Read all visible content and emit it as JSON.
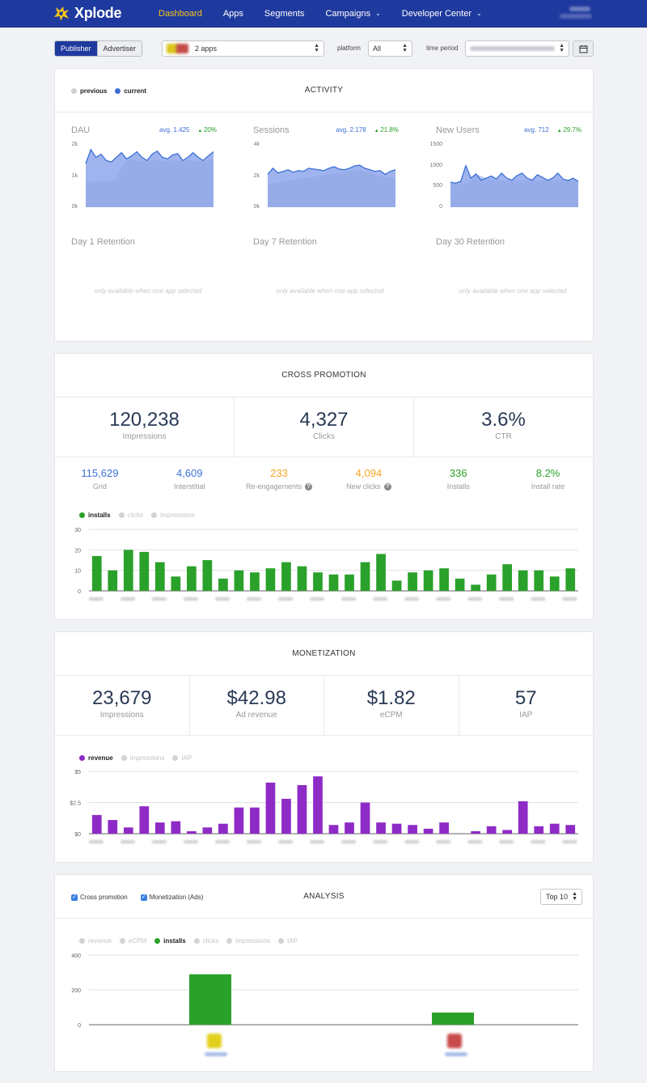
{
  "nav": {
    "brand": "Xplode",
    "items": [
      {
        "label": "Dashboard",
        "active": true,
        "dropdown": false
      },
      {
        "label": "Apps",
        "active": false,
        "dropdown": false
      },
      {
        "label": "Segments",
        "active": false,
        "dropdown": false
      },
      {
        "label": "Campaigns",
        "active": false,
        "dropdown": true
      },
      {
        "label": "Developer Center",
        "active": false,
        "dropdown": true
      }
    ]
  },
  "filters": {
    "role_publisher": "Publisher",
    "role_advertiser": "Advertiser",
    "apps_value": "2 apps",
    "platform_label": "platform",
    "platform_value": "All",
    "time_label": "time period"
  },
  "activity": {
    "title": "ACTIVITY",
    "legend": {
      "previous": "previous",
      "current": "current"
    },
    "metrics": [
      {
        "name": "DAU",
        "avg": "avg. 1.425",
        "change": "20%",
        "yticks": [
          "2k",
          "1k",
          "0k"
        ],
        "ymax": 2000,
        "current": [
          1400,
          1850,
          1600,
          1700,
          1500,
          1450,
          1600,
          1750,
          1550,
          1650,
          1780,
          1600,
          1500,
          1700,
          1800,
          1600,
          1550,
          1680,
          1720,
          1500,
          1600,
          1750,
          1600,
          1500,
          1650,
          1780
        ],
        "previous": [
          800,
          820,
          810,
          830,
          800,
          850,
          900,
          1300,
          1500,
          1550,
          1500,
          1450,
          1500,
          1480,
          1520,
          1500,
          1480,
          1510,
          1490,
          1500,
          1520,
          1480,
          1500,
          1490,
          1510,
          1500
        ]
      },
      {
        "name": "Sessions",
        "avg": "avg. 2.178",
        "change": "21.8%",
        "yticks": [
          "4k",
          "2k",
          "0k"
        ],
        "ymax": 4000,
        "current": [
          2100,
          2500,
          2200,
          2300,
          2400,
          2250,
          2350,
          2300,
          2500,
          2450,
          2400,
          2350,
          2500,
          2600,
          2450,
          2400,
          2500,
          2650,
          2700,
          2500,
          2400,
          2300,
          2350,
          2100,
          2300,
          2400
        ],
        "previous": [
          1500,
          1550,
          1600,
          1650,
          1700,
          1750,
          1800,
          1850,
          1900,
          1950,
          2000,
          2050,
          2100,
          2150,
          2200,
          2250,
          2300,
          2350,
          2400,
          2300,
          2200,
          2100,
          2000,
          1950,
          1900,
          1850
        ]
      },
      {
        "name": "New Users",
        "avg": "avg. 712",
        "change": "29.7%",
        "yticks": [
          "1500",
          "1000",
          "500",
          "0"
        ],
        "ymax": 1500,
        "current": [
          600,
          580,
          620,
          1000,
          700,
          800,
          650,
          700,
          750,
          680,
          820,
          700,
          650,
          760,
          820,
          700,
          650,
          780,
          720,
          650,
          700,
          820,
          680,
          640,
          700,
          620
        ],
        "previous": [
          550,
          560,
          570,
          580,
          600,
          800,
          750,
          700,
          680,
          660,
          650,
          640,
          660,
          650,
          640,
          650,
          660,
          640,
          650,
          660,
          650,
          640,
          650,
          660,
          650,
          640
        ]
      }
    ],
    "retention": [
      {
        "name": "Day 1 Retention",
        "note": "only available when one app selected"
      },
      {
        "name": "Day 7 Retention",
        "note": "only available when one app selected"
      },
      {
        "name": "Day 30 Retention",
        "note": "only available when one app selected"
      }
    ]
  },
  "cross_promotion": {
    "title": "CROSS PROMOTION",
    "stats": [
      {
        "value": "120,238",
        "label": "Impressions"
      },
      {
        "value": "4,327",
        "label": "Clicks"
      },
      {
        "value": "3.6%",
        "label": "CTR"
      }
    ],
    "sub_stats": [
      {
        "value": "115,629",
        "label": "Grid",
        "color": "#3b6fd6",
        "help": false
      },
      {
        "value": "4,609",
        "label": "Interstitial",
        "color": "#3b6fd6",
        "help": false
      },
      {
        "value": "233",
        "label": "Re-engagements",
        "color": "#f5a623",
        "help": true
      },
      {
        "value": "4,094",
        "label": "New clicks",
        "color": "#f5a623",
        "help": true
      },
      {
        "value": "336",
        "label": "Installs",
        "color": "#2aa12a",
        "help": false
      },
      {
        "value": "8.2%",
        "label": "Install rate",
        "color": "#2aa12a",
        "help": false
      }
    ],
    "legend": [
      "installs",
      "clicks",
      "impressions"
    ]
  },
  "monetization": {
    "title": "MONETIZATION",
    "stats": [
      {
        "value": "23,679",
        "label": "Impressions"
      },
      {
        "value": "$42.98",
        "label": "Ad revenue"
      },
      {
        "value": "$1.82",
        "label": "eCPM"
      },
      {
        "value": "57",
        "label": "IAP"
      }
    ],
    "legend": [
      "revenue",
      "impressions",
      "IAP"
    ]
  },
  "analysis": {
    "title": "ANALYSIS",
    "checkboxes": [
      "Cross promotion",
      "Monetization (Ads)"
    ],
    "top_select": "Top 10",
    "legend": [
      "revenue",
      "eCPM",
      "installs",
      "clicks",
      "impressions",
      "IAP"
    ]
  },
  "colors": {
    "nav_bg": "#1f3a9e",
    "accent_active": "#f5c518",
    "green": "#2aa12a",
    "purple": "#8e2bc7",
    "blue": "#3b6fd6"
  },
  "chart_data": [
    {
      "type": "bar",
      "name": "cross-promotion-installs",
      "yticks": [
        0,
        10,
        20,
        30
      ],
      "ylim": [
        0,
        30
      ],
      "series": [
        {
          "name": "installs",
          "color": "#2aa12a",
          "values": [
            17,
            10,
            20,
            19,
            14,
            7,
            12,
            15,
            6,
            10,
            9,
            11,
            14,
            12,
            9,
            8,
            8,
            14,
            18,
            5,
            9,
            10,
            11,
            6,
            3,
            8,
            13,
            10,
            10,
            7,
            11
          ]
        }
      ]
    },
    {
      "type": "bar",
      "name": "monetization-revenue",
      "yticks": [
        "$0",
        "$2.5",
        "$5"
      ],
      "ylim": [
        0,
        5
      ],
      "series": [
        {
          "name": "revenue",
          "color": "#8e2bc7",
          "values": [
            1.5,
            1.1,
            0.5,
            2.2,
            0.9,
            1.0,
            0.2,
            0.5,
            0.8,
            2.1,
            2.1,
            4.1,
            2.8,
            3.9,
            4.6,
            0.7,
            0.9,
            2.5,
            0.9,
            0.8,
            0.7,
            0.4,
            0.9,
            0.0,
            0.2,
            0.6,
            0.3,
            2.6,
            0.6,
            0.8,
            0.7
          ]
        }
      ]
    },
    {
      "type": "bar",
      "name": "analysis-installs-by-app",
      "yticks": [
        0,
        200,
        400
      ],
      "ylim": [
        0,
        400
      ],
      "series": [
        {
          "name": "installs",
          "color": "#2aa12a",
          "values": [
            290,
            70
          ]
        }
      ]
    }
  ]
}
